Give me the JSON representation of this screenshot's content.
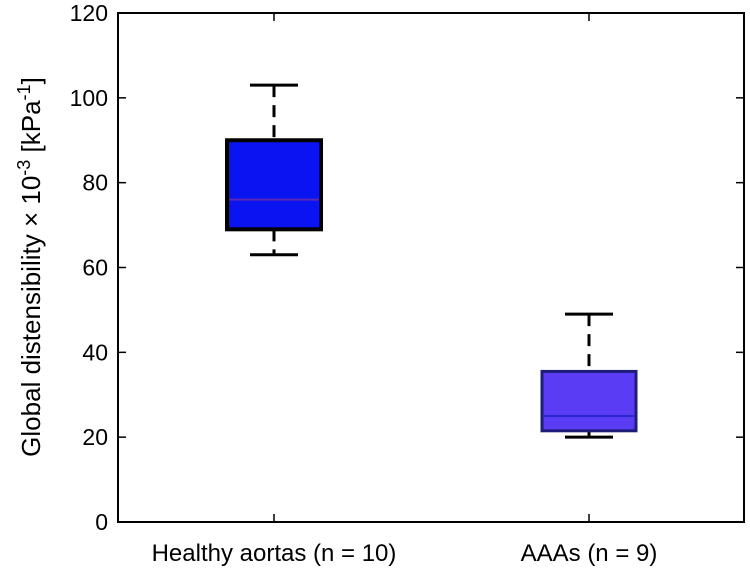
{
  "chart_data": {
    "type": "box",
    "title": "",
    "xlabel": "",
    "ylabel": {
      "main": "Global distensibility × 10",
      "exp1": "-3",
      "unit_open": " [kPa",
      "exp2": "-1",
      "unit_close": "]"
    },
    "ylim": [
      0,
      120
    ],
    "yticks": [
      0,
      20,
      40,
      60,
      80,
      100,
      120
    ],
    "categories": [
      "Healthy aortas (n = 10)",
      "AAAs (n = 9)"
    ],
    "boxes": [
      {
        "name": "Healthy aortas (n = 10)",
        "whisker_low": 63,
        "q1": 69,
        "median": 76,
        "q3": 90,
        "whisker_high": 103,
        "color": "#0a14f0",
        "border": "#000000",
        "median_color": "#5a28b4"
      },
      {
        "name": "AAAs (n = 9)",
        "whisker_low": 20,
        "q1": 21.5,
        "median": 25,
        "q3": 35.5,
        "whisker_high": 49,
        "color": "#5a3cf5",
        "border": "#1e1e78",
        "median_color": "#2a28c8"
      }
    ],
    "grid": false
  }
}
